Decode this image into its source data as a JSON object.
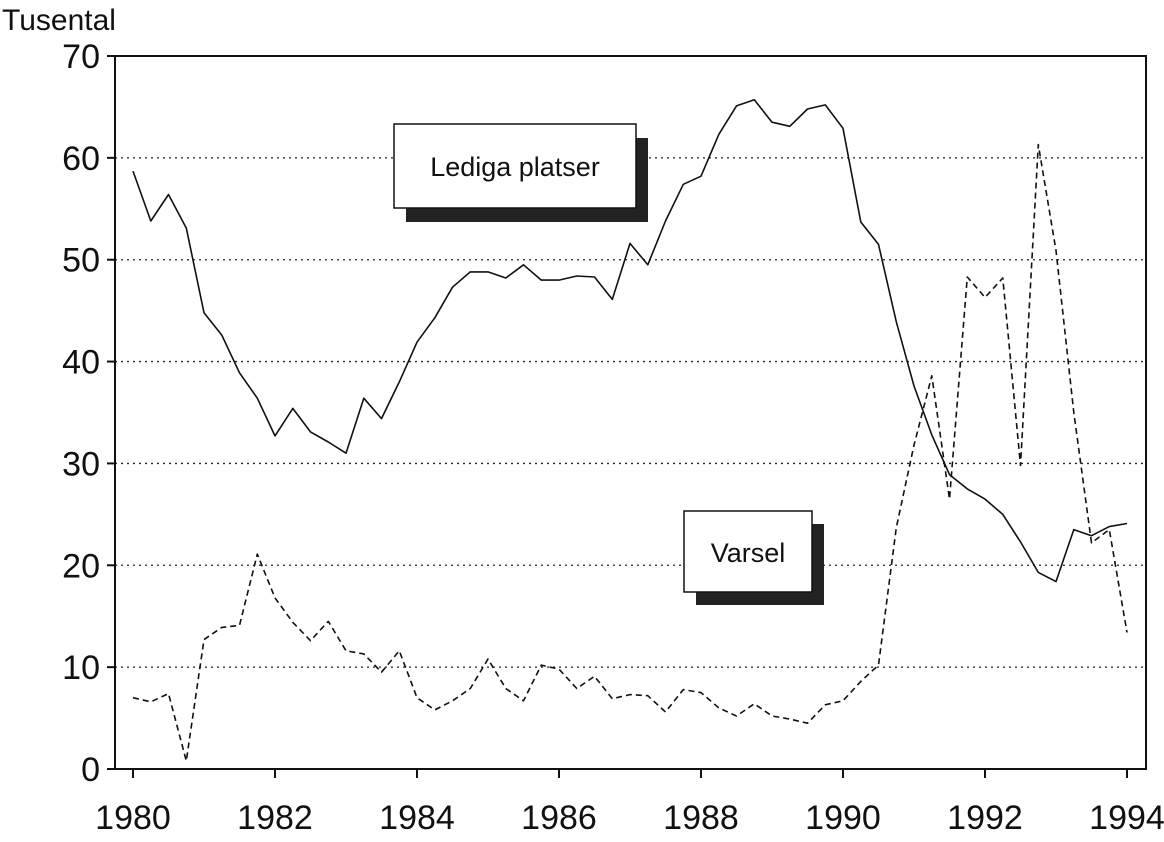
{
  "chart_data": {
    "type": "line",
    "title": "",
    "ylabel": "Tusental",
    "xlabel": "",
    "xlim": [
      1980,
      1994
    ],
    "ylim": [
      0,
      70
    ],
    "x_ticks": [
      "1980",
      "1982",
      "1984",
      "1986",
      "1988",
      "1990",
      "1992",
      "1994"
    ],
    "y_ticks": [
      "0",
      "10",
      "20",
      "30",
      "40",
      "50",
      "60",
      "70"
    ],
    "grid": "horizontal dotted",
    "series": [
      {
        "name": "Lediga platser",
        "style": "solid",
        "x": [
          1980.0,
          1980.25,
          1980.5,
          1980.75,
          1981.0,
          1981.25,
          1981.5,
          1981.75,
          1982.0,
          1982.25,
          1982.5,
          1982.75,
          1983.0,
          1983.25,
          1983.5,
          1983.75,
          1984.0,
          1984.25,
          1984.5,
          1984.75,
          1985.0,
          1985.25,
          1985.5,
          1985.75,
          1986.0,
          1986.25,
          1986.5,
          1986.75,
          1987.0,
          1987.25,
          1987.5,
          1987.75,
          1988.0,
          1988.25,
          1988.5,
          1988.75,
          1989.0,
          1989.25,
          1989.5,
          1989.75,
          1990.0,
          1990.25,
          1990.5,
          1990.75,
          1991.0,
          1991.25,
          1991.5,
          1991.75,
          1992.0,
          1992.25,
          1992.5,
          1992.75,
          1993.0,
          1993.25,
          1993.5,
          1993.75,
          1994.0
        ],
        "values": [
          58.7,
          53.8,
          56.4,
          53.1,
          44.8,
          42.6,
          38.9,
          36.4,
          32.7,
          35.4,
          33.1,
          32.1,
          31.0,
          36.4,
          34.4,
          38.0,
          41.9,
          44.3,
          47.3,
          48.8,
          48.8,
          48.2,
          49.5,
          48.0,
          48.0,
          48.4,
          48.3,
          46.1,
          51.6,
          49.5,
          53.8,
          57.4,
          58.2,
          62.3,
          65.1,
          65.7,
          63.5,
          63.1,
          64.8,
          65.2,
          62.9,
          53.7,
          51.5,
          43.9,
          37.6,
          32.8,
          28.9,
          27.5,
          26.5,
          25.0,
          22.3,
          19.3,
          18.4,
          23.5,
          22.9,
          23.8,
          24.1
        ]
      },
      {
        "name": "Varsel",
        "style": "dashed",
        "x": [
          1980.0,
          1980.25,
          1980.5,
          1980.75,
          1981.0,
          1981.25,
          1981.5,
          1981.75,
          1982.0,
          1982.25,
          1982.5,
          1982.75,
          1983.0,
          1983.25,
          1983.5,
          1983.75,
          1984.0,
          1984.25,
          1984.5,
          1984.75,
          1985.0,
          1985.25,
          1985.5,
          1985.75,
          1986.0,
          1986.25,
          1986.5,
          1986.75,
          1987.0,
          1987.25,
          1987.5,
          1987.75,
          1988.0,
          1988.25,
          1988.5,
          1988.75,
          1989.0,
          1989.25,
          1989.5,
          1989.75,
          1990.0,
          1990.25,
          1990.5,
          1990.75,
          1991.0,
          1991.25,
          1991.5,
          1991.75,
          1992.0,
          1992.25,
          1992.5,
          1992.75,
          1993.0,
          1993.25,
          1993.5,
          1993.75,
          1994.0
        ],
        "values": [
          7.0,
          6.6,
          7.4,
          0.8,
          12.7,
          13.9,
          14.1,
          21.1,
          16.8,
          14.4,
          12.6,
          14.5,
          11.6,
          11.3,
          9.5,
          11.6,
          7.0,
          5.8,
          6.7,
          7.9,
          10.8,
          7.9,
          6.7,
          10.2,
          9.8,
          7.9,
          9.1,
          6.9,
          7.3,
          7.2,
          5.6,
          7.8,
          7.5,
          6.0,
          5.2,
          6.4,
          5.2,
          4.9,
          4.5,
          6.3,
          6.7,
          8.6,
          10.2,
          23.7,
          31.8,
          38.6,
          26.5,
          48.3,
          46.3,
          48.2,
          29.8,
          61.3,
          50.9,
          35.0,
          22.2,
          23.5,
          13.4
        ]
      }
    ],
    "annotations": [
      {
        "text": "Lediga platser",
        "x": 1988.6,
        "y": 60
      },
      {
        "text": "Varsel",
        "x": 1989.6,
        "y": 21
      }
    ]
  }
}
